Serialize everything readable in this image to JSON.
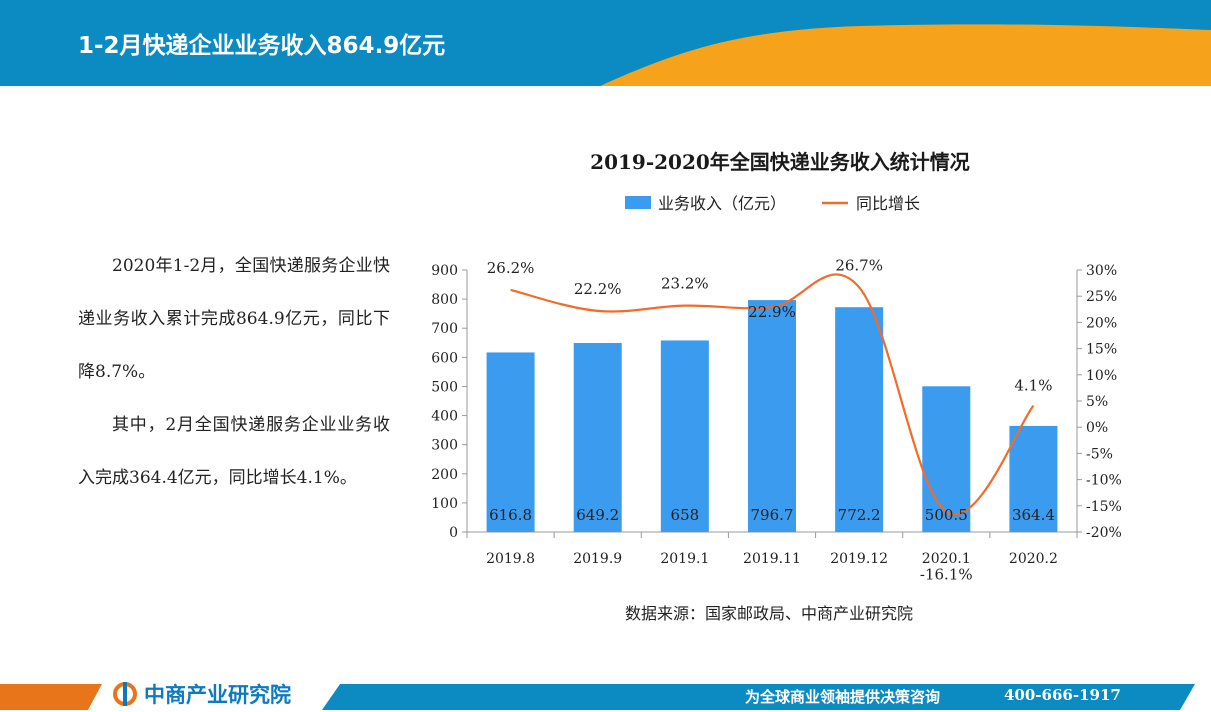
{
  "header": {
    "title": "1-2月快递企业业务收入864.9亿元",
    "colors": {
      "blue": "#0b8bc2",
      "orange": "#f7a21b"
    }
  },
  "body_text": {
    "paragraphs": [
      "2020年1-2月，全国快递服务企业快递业务收入累计完成864.9亿元，同比下降8.7%。",
      "其中，2月全国快递服务企业业务收入完成364.4亿元，同比增长4.1%。"
    ]
  },
  "chart_data": {
    "type": "bar",
    "title": "2019-2020年全国快递业务收入统计情况",
    "categories": [
      "2019.8",
      "2019.9",
      "2019.1",
      "2019.11",
      "2019.12",
      "2020.1",
      "2020.2"
    ],
    "series": [
      {
        "name": "业务收入（亿元）",
        "type": "bar",
        "axis": "left",
        "color": "#3a9bef",
        "values": [
          616.8,
          649.2,
          658,
          796.7,
          772.2,
          500.5,
          364.4
        ],
        "labels": [
          "616.8",
          "649.2",
          "658",
          "796.7",
          "772.2",
          "500.5",
          "364.4"
        ]
      },
      {
        "name": "同比增长",
        "type": "line",
        "axis": "right",
        "color": "#f26b2a",
        "values": [
          26.2,
          22.2,
          23.2,
          22.9,
          26.7,
          -16.1,
          4.1
        ],
        "labels": [
          "26.2%",
          "22.2%",
          "23.2%",
          "22.9%",
          "26.7%",
          "-16.1%",
          "4.1%"
        ]
      }
    ],
    "left_axis": {
      "min": 0,
      "max": 900,
      "ticks": [
        "0",
        "100",
        "200",
        "300",
        "400",
        "500",
        "600",
        "700",
        "800",
        "900"
      ]
    },
    "right_axis": {
      "min": -20,
      "max": 30,
      "ticks": [
        "-20%",
        "-15%",
        "-10%",
        "-5%",
        "0%",
        "5%",
        "10%",
        "15%",
        "20%",
        "25%",
        "30%"
      ]
    },
    "legend_position": "top",
    "grid": false
  },
  "source": "数据来源：国家邮政局、中商产业研究院",
  "footer": {
    "logo_text": "中商产业研究院",
    "slogan": "为全球商业领袖提供决策咨询",
    "phone": "400-666-1917",
    "colors": {
      "blue": "#0b8bc2",
      "orange": "#e8751a"
    }
  }
}
